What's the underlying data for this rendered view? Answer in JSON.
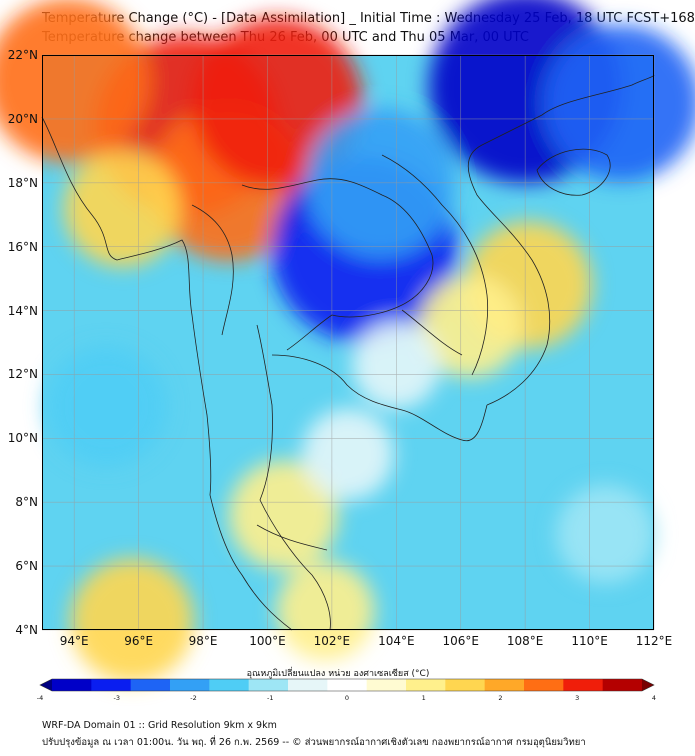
{
  "title_line1": "Temperature Change (°C) - [Data Assimilation] _ Initial Time : Wednesday 25 Feb, 18 UTC FCST+168",
  "title_line2": "Temperature change between Thu 26 Feb, 00 UTC and Thu 05 Mar, 00 UTC",
  "map": {
    "lon_range": [
      93,
      112
    ],
    "lat_range": [
      4,
      22
    ],
    "lat_ticks": [
      "22°N",
      "20°N",
      "18°N",
      "16°N",
      "14°N",
      "12°N",
      "10°N",
      "8°N",
      "6°N",
      "4°N"
    ],
    "lon_ticks": [
      "94°E",
      "96°E",
      "98°E",
      "100°E",
      "102°E",
      "104°E",
      "106°E",
      "108°E",
      "110°E",
      "112°E"
    ],
    "base_color": "#5fd3f1",
    "regions": [
      {
        "name": "warm-core-north-myanmar",
        "lon": 97.5,
        "lat": 19.8,
        "value": 3.1
      },
      {
        "name": "warm-northwest-edge",
        "lon": 93.8,
        "lat": 21.2,
        "value": 2.6
      },
      {
        "name": "warm-north-thailand",
        "lon": 98.8,
        "lat": 18.0,
        "value": 2.4
      },
      {
        "name": "warm-shan-east",
        "lon": 100.3,
        "lat": 20.5,
        "value": 2.8
      },
      {
        "name": "warm-band-west",
        "lon": 95.5,
        "lat": 17.2,
        "value": 1.3
      },
      {
        "name": "cold-core-northeast-thailand",
        "lon": 103.0,
        "lat": 15.9,
        "value": -3.2
      },
      {
        "name": "cold-laos-north",
        "lon": 103.5,
        "lat": 18.0,
        "value": -2.2
      },
      {
        "name": "cold-gulf-tonkin",
        "lon": 108.0,
        "lat": 21.0,
        "value": -3.4
      },
      {
        "name": "cold-northeast-corner",
        "lon": 111.0,
        "lat": 20.5,
        "value": -2.4
      },
      {
        "name": "warm-central-vietnam",
        "lon": 108.1,
        "lat": 14.8,
        "value": 1.6
      },
      {
        "name": "warm-cambodia-east",
        "lon": 106.3,
        "lat": 13.5,
        "value": 0.9
      },
      {
        "name": "warm-malay-peninsula",
        "lon": 100.5,
        "lat": 7.6,
        "value": 1.1
      },
      {
        "name": "warm-southwest",
        "lon": 95.8,
        "lat": 4.3,
        "value": 1.5
      },
      {
        "name": "warm-south-center",
        "lon": 101.8,
        "lat": 4.6,
        "value": 0.8
      },
      {
        "name": "pale-gulf-thailand",
        "lon": 102.5,
        "lat": 9.5,
        "value": -0.6
      },
      {
        "name": "pale-cambodia-west",
        "lon": 104.0,
        "lat": 12.3,
        "value": -0.5
      },
      {
        "name": "pale-scs-east",
        "lon": 110.5,
        "lat": 7.0,
        "value": -0.8
      },
      {
        "name": "cold-andaman",
        "lon": 95.0,
        "lat": 11.0,
        "value": -1.4
      }
    ]
  },
  "colorbar": {
    "label": "อุณหภูมิเปลี่ยนแปลง หน่วย องศาเซลเซียส (°C)",
    "min": -4,
    "max": 4,
    "ticks": [
      "-4",
      "-3",
      "-2",
      "-1",
      "0",
      "1",
      "2",
      "3",
      "4"
    ],
    "colors": [
      "#000080",
      "#0000c8",
      "#0a1ef0",
      "#1e64f5",
      "#33a0f5",
      "#4fcdf5",
      "#9ee6f5",
      "#e6f6f8",
      "#ffffff",
      "#fffbd2",
      "#fff08c",
      "#ffd650",
      "#ffa828",
      "#ff6e14",
      "#f01e0a",
      "#b40000",
      "#780000"
    ]
  },
  "footer_line1": "WRF-DA Domain 01 :: Grid Resolution 9km x 9km",
  "footer_line2": "ปรับปรุงข้อมูล ณ เวลา 01:00น. วัน พฤ. ที่ 26 ก.พ. 2569 -- © ส่วนพยากรณ์อากาศเชิงตัวเลข กองพยากรณ์อากาศ กรมอุตุนิยมวิทยา"
}
